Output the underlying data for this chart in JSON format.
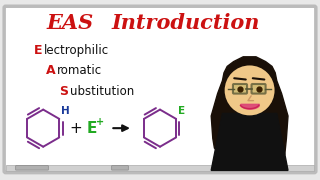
{
  "bg_color": "#e8e8e8",
  "board_color": "#ffffff",
  "board_edge": "#cccccc",
  "red_color": "#cc1111",
  "purple_color": "#7B2D8B",
  "green_color": "#22aa22",
  "blue_color": "#1a3a9a",
  "dark_color": "#111111",
  "skin_color": "#f0c888",
  "hair_color": "#1a1008",
  "title_EAS": "EAS",
  "title_intro": "Introduction",
  "label_E_big": "E",
  "label_E_rest": "lectrophilic",
  "label_A_big": "A",
  "label_A_rest": "romatic",
  "label_S_big": "S",
  "label_S_rest": "ubstitution",
  "eraser1_color": "#aaaaaa",
  "eraser2_color": "#888888"
}
